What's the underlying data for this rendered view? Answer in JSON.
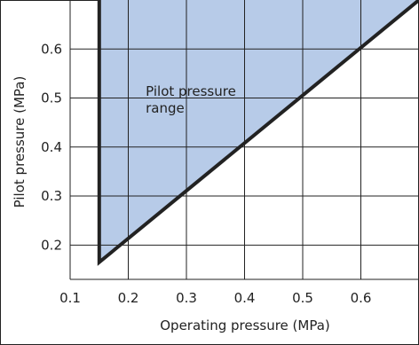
{
  "chart_data": {
    "type": "area",
    "xlabel": "Operating pressure (MPa)",
    "ylabel": "Pilot pressure (MPa)",
    "xlim": [
      0.1,
      0.7
    ],
    "ylim": [
      0.13,
      0.7
    ],
    "x_ticks": [
      "0.1",
      "0.2",
      "0.3",
      "0.4",
      "0.5",
      "0.6"
    ],
    "y_ticks": [
      "0.2",
      "0.3",
      "0.4",
      "0.5",
      "0.6"
    ],
    "grid": true,
    "series": [
      {
        "name": "",
        "fill_color": "#b7cbe8",
        "boundary": [
          {
            "x": 0.15,
            "y": 0.7
          },
          {
            "x": 0.15,
            "y": 0.165
          },
          {
            "x": 0.7,
            "y": 0.7
          }
        ]
      }
    ],
    "annotations": [
      {
        "lines": [
          "Pilot pressure",
          "range"
        ],
        "x": 0.23,
        "y": 0.505
      }
    ],
    "colors": {
      "boundary_line": "#222222",
      "grid": "#222222",
      "frame": "#222222"
    }
  }
}
